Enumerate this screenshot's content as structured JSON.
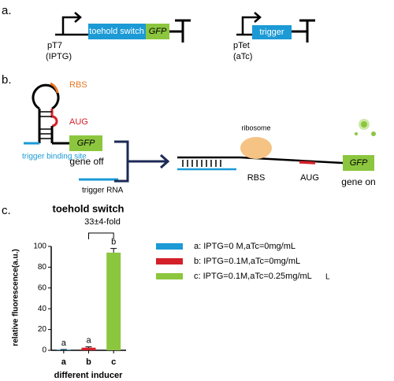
{
  "panel_a": {
    "label": "a.",
    "construct1": {
      "part1": "toehold switch",
      "part2": "GFP",
      "promoter": "pT7",
      "inducer": "(IPTG)"
    },
    "construct2": {
      "part1": "trigger",
      "promoter": "pTet",
      "inducer": "(aTc)"
    }
  },
  "panel_b": {
    "label": "b.",
    "rbs": "RBS",
    "aug": "AUG",
    "binding_site": "trigger binding site",
    "gfp": "GFP",
    "gene_off": "gene off",
    "trigger_rna": "trigger RNA",
    "ribosome": "ribosome",
    "rbs2": "RBS",
    "aug2": "AUG",
    "gfp2": "GFP",
    "gene_on": "gene on"
  },
  "panel_c_label": "c.",
  "chart_data": {
    "type": "bar",
    "title": "toehold switch",
    "annotation": "33±4-fold",
    "y_label": "relative fluorescence(a.u.)",
    "x_label": "different inducer",
    "categories": [
      "a",
      "b",
      "c"
    ],
    "values": [
      0.5,
      2.5,
      94
    ],
    "errors": [
      0.3,
      0.8,
      4
    ],
    "significance": [
      "a",
      "a",
      "b"
    ],
    "colors": [
      "#1b9ad6",
      "#d42029",
      "#8cc63f"
    ],
    "legend": [
      "a: IPTG=0 M,aTc=0mg/mL",
      "b: IPTG=0.1M,aTc=0mg/mL",
      "c: IPTG=0.1M,aTc=0.25mg/mL"
    ],
    "legend_extra": "L",
    "ylim": [
      0,
      100
    ],
    "yticks": [
      0,
      20,
      40,
      60,
      80,
      100
    ]
  }
}
